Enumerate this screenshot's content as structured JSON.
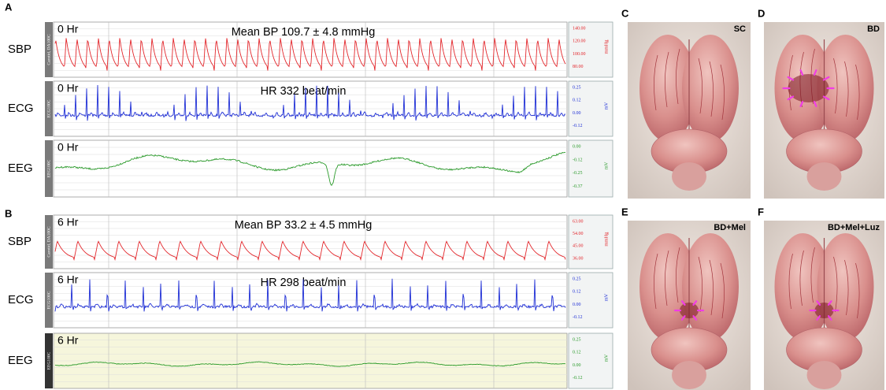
{
  "panels": [
    {
      "letter": "A",
      "traces": [
        {
          "label": "SBP",
          "channel": "Carotid, DA100C",
          "time": "0 Hr",
          "annotation": "Mean BP 109.7 ± 4.8 mmHg",
          "scale": [
            "140.00",
            "120.00",
            "100.00",
            "80.00"
          ],
          "unit": "mmHg",
          "color": "#e3262b"
        },
        {
          "label": "ECG",
          "channel": "ECG100C",
          "time": "0 Hr",
          "annotation": "HR 332 beat/min",
          "scale": [
            "0.25",
            "0.12",
            "0.00",
            "-0.12"
          ],
          "unit": "mV",
          "color": "#1f2fd6"
        },
        {
          "label": "EEG",
          "channel": "EEG100C",
          "time": "0 Hr",
          "scale": [
            "0.00",
            "-0.12",
            "-0.25",
            "-0.37"
          ],
          "unit": "mV",
          "color": "#2a9a2a"
        }
      ]
    },
    {
      "letter": "B",
      "traces": [
        {
          "label": "SBP",
          "channel": "Carotid, DA100C",
          "time": "6 Hr",
          "annotation": "Mean BP 33.2 ± 4.5 mmHg",
          "scale": [
            "63.00",
            "54.00",
            "45.00",
            "36.00"
          ],
          "unit": "mmHg",
          "color": "#e3262b"
        },
        {
          "label": "ECG",
          "channel": "ECG100C",
          "time": "6 Hr",
          "annotation": "HR 298 beat/min",
          "scale": [
            "0.25",
            "0.12",
            "0.00",
            "-0.12"
          ],
          "unit": "mV",
          "color": "#1f2fd6"
        },
        {
          "label": "EEG",
          "channel": "EEG100C",
          "time": "6 Hr",
          "scale": [
            "0.25",
            "0.12",
            "0.00",
            "-0.12"
          ],
          "unit": "mV",
          "color": "#2a9a2a"
        }
      ]
    }
  ],
  "photos": [
    {
      "letter": "C",
      "label": "SC"
    },
    {
      "letter": "D",
      "label": "BD"
    },
    {
      "letter": "E",
      "label": "BD+Mel"
    },
    {
      "letter": "F",
      "label": "BD+Mel+Luz"
    }
  ]
}
